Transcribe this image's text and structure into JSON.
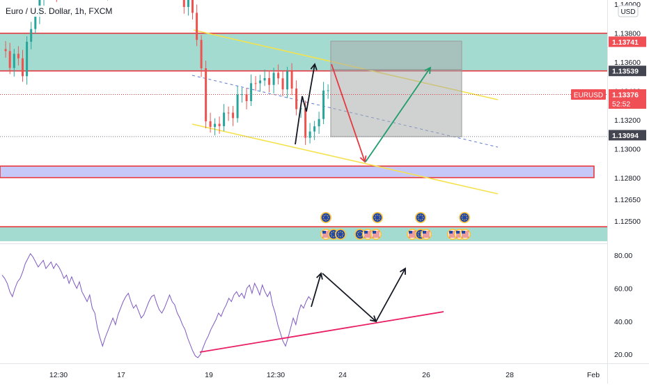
{
  "title": "Euro / U.S. Dollar, 1h, FXCM",
  "currency": "USD",
  "chart_data": [
    {
      "type": "candlestick",
      "symbol": "EURUSD",
      "title": "Euro / U.S. Dollar, 1h, FXCM",
      "ylim": [
        1.1235,
        1.1403
      ],
      "price_ticks": [
        "1.14000",
        "1.13800",
        "1.13600",
        "1.13400",
        "1.13200",
        "1.13000",
        "1.12800",
        "1.12650",
        "1.12500"
      ],
      "price_tick_values": [
        1.14,
        1.138,
        1.136,
        1.134,
        1.132,
        1.13,
        1.128,
        1.1265,
        1.125
      ],
      "axis_tags": [
        {
          "label": "1.13741",
          "value": 1.13741,
          "style": "red"
        },
        {
          "label": "1.13539",
          "value": 1.13539,
          "style": "dark"
        },
        {
          "label": "1.13376",
          "value": 1.13376,
          "style": "red",
          "countdown": "52:52",
          "symbol_label": "EURUSD"
        },
        {
          "label": "1.13094",
          "value": 1.13094,
          "style": "dark"
        }
      ],
      "zones": [
        {
          "name": "resistance-zone",
          "from": 1.13539,
          "to": 1.138,
          "color": "#9fd9cf"
        },
        {
          "name": "support-zone-low",
          "from": 1.1236,
          "to": 1.1246,
          "color": "#9fd9cf"
        }
      ],
      "levels": [
        {
          "name": "resistance-top",
          "value": 1.138,
          "color": "#e5383f"
        },
        {
          "name": "resistance-bottom",
          "value": 1.13539,
          "color": "#e5383f"
        },
        {
          "name": "support-low",
          "value": 1.1246,
          "color": "#e5383f"
        }
      ],
      "last_price": 1.13376
    },
    {
      "type": "line",
      "name": "rsi",
      "ylim": [
        15,
        86
      ],
      "ticks": [
        "80.00",
        "60.00",
        "40.00",
        "20.00"
      ],
      "tick_values": [
        80,
        60,
        40,
        20
      ],
      "values": [
        68,
        66,
        63,
        58,
        55,
        60,
        64,
        66,
        70,
        75,
        78,
        81,
        79,
        76,
        73,
        75,
        77,
        72,
        74,
        76,
        72,
        75,
        73,
        70,
        66,
        68,
        63,
        67,
        63,
        60,
        64,
        58,
        55,
        52,
        56,
        48,
        45,
        36,
        30,
        25,
        30,
        34,
        38,
        42,
        38,
        44,
        48,
        52,
        55,
        57,
        52,
        48,
        50,
        46,
        42,
        44,
        48,
        52,
        55,
        56,
        51,
        47,
        45,
        48,
        52,
        56,
        52,
        50,
        45,
        42,
        38,
        35,
        30,
        26,
        22,
        19,
        18,
        20,
        24,
        28,
        31,
        35,
        38,
        41,
        45,
        43,
        47,
        50,
        54,
        52,
        56,
        58,
        55,
        57,
        54,
        60,
        62,
        57,
        63,
        60,
        56,
        62,
        58,
        55,
        58,
        50,
        45,
        38,
        33,
        28,
        25,
        30,
        36,
        42,
        38,
        45,
        50,
        48,
        52,
        55,
        53
      ]
    }
  ],
  "x_ticks": [
    "12:30",
    "17",
    "19",
    "12:30",
    "24",
    "26",
    "28",
    "Feb"
  ],
  "x_tick_values": [
    14,
    29,
    50,
    66,
    82,
    102,
    122,
    142
  ]
}
